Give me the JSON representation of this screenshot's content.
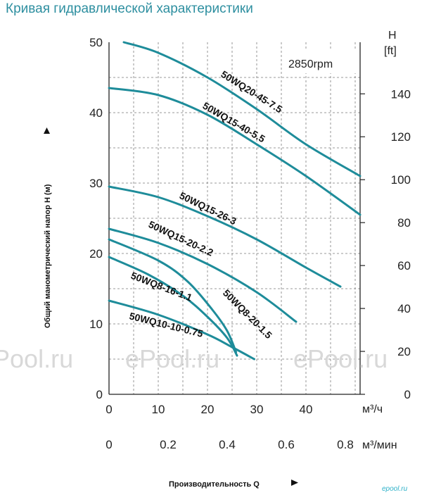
{
  "title": "Кривая гидравлической характеристики",
  "colors": {
    "curve": "#1e8c9a",
    "grid": "#7a7a7a",
    "axis": "#222222",
    "title": "#2e8fa0"
  },
  "chart_data": {
    "type": "line",
    "speed_label": "2850rpm",
    "x_unit_m3h": "м³/ч",
    "x_unit_m3min": "м³/мин",
    "x_ticks_m3h": [
      "0",
      "10",
      "20",
      "30",
      "40"
    ],
    "x_ticks_m3min": [
      "0",
      "0.2",
      "0.4",
      "0.6",
      "0.8"
    ],
    "xlim": [
      0,
      51
    ],
    "ylim": [
      0,
      50
    ],
    "y_ticks_m": [
      "0",
      "10",
      "20",
      "30",
      "40",
      "50"
    ],
    "y2_title": "H",
    "y2_unit": "[ft]",
    "y2_ticks_ft": [
      "0",
      "20",
      "40",
      "60",
      "80",
      "100",
      "120",
      "140"
    ],
    "xlabel": "Производительность Q",
    "ylabel": "Общий манометрический напор H (м)",
    "grid": true,
    "series": [
      {
        "name": "50WQ20-45-7.5",
        "x": [
          3,
          10,
          20,
          30,
          40,
          51
        ],
        "y": [
          50,
          48.5,
          45,
          40.5,
          35.5,
          31
        ]
      },
      {
        "name": "50WQ15-40-5.5",
        "x": [
          0,
          10,
          20,
          30,
          40,
          51
        ],
        "y": [
          43.5,
          42.5,
          39.7,
          35.5,
          31,
          25.5
        ]
      },
      {
        "name": "50WQ15-26-3",
        "x": [
          0,
          10,
          20,
          30,
          40,
          47
        ],
        "y": [
          29.5,
          28,
          25.3,
          22,
          18,
          15.3
        ]
      },
      {
        "name": "50WQ15-20-2.2",
        "x": [
          0,
          10,
          20,
          30,
          38
        ],
        "y": [
          23.5,
          21.5,
          18.5,
          14.5,
          10.3
        ]
      },
      {
        "name": "50WQ8-20-1.5",
        "x": [
          0,
          10,
          16,
          21,
          24,
          25.8
        ],
        "y": [
          22,
          19,
          16,
          12,
          9,
          6
        ]
      },
      {
        "name": "50WQ8-16-1.1",
        "x": [
          0,
          8,
          15,
          20,
          24,
          26
        ],
        "y": [
          19.5,
          17,
          14,
          11,
          8,
          5.5
        ]
      },
      {
        "name": "50WQ10-10-0.75",
        "x": [
          0,
          10,
          20,
          25,
          29.5
        ],
        "y": [
          13.3,
          11.3,
          8.5,
          6.7,
          5
        ]
      }
    ]
  },
  "watermarks": [
    "ePool.ru",
    "ePool.ru",
    "ePool.ru"
  ],
  "logo": "epool.ru"
}
